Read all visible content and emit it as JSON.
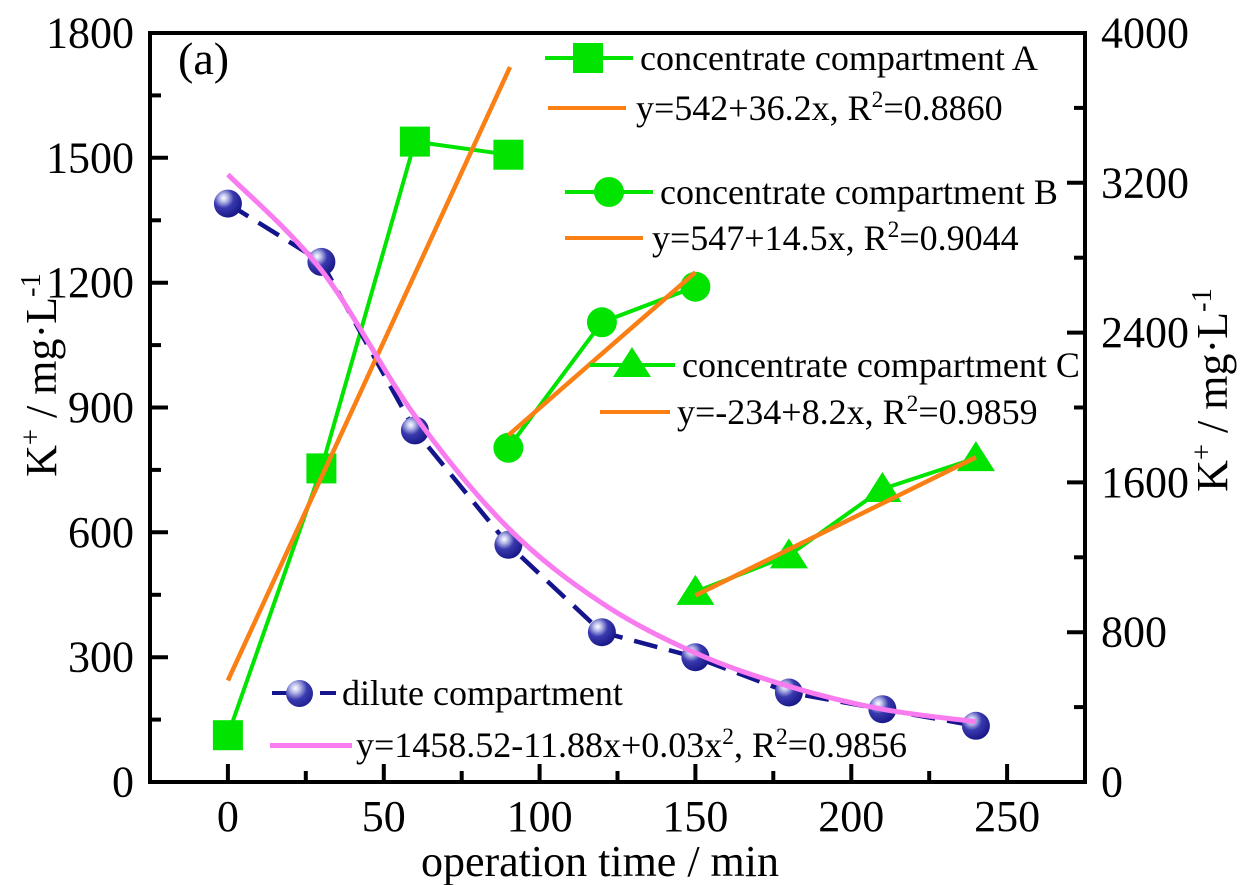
{
  "panel_label": "(a)",
  "colors": {
    "green": "#00e400",
    "orange": "#fa8016",
    "pink": "#f87cf0",
    "navy": "#14148c",
    "axis": "#000000",
    "background": "#ffffff"
  },
  "axes": {
    "x": {
      "title": "operation time / min",
      "range": [
        -25,
        275
      ],
      "major_ticks": [
        0,
        50,
        100,
        150,
        200,
        250
      ],
      "minor_ticks": [
        25,
        75,
        125,
        175,
        225
      ],
      "grid": false
    },
    "left": {
      "title": {
        "pre": "K",
        "sup": "+",
        "post": " / mg·L",
        "sup2": "-1"
      },
      "range": [
        0,
        1800
      ],
      "major_ticks": [
        0,
        300,
        600,
        900,
        1200,
        1500,
        1800
      ],
      "minor_ticks": [
        150,
        450,
        750,
        1050,
        1350,
        1650
      ],
      "grid": false
    },
    "right": {
      "title": {
        "pre": "K",
        "sup": "+",
        "post": " / mg·L",
        "sup2": "-1"
      },
      "range": [
        0,
        4000
      ],
      "major_ticks": [
        0,
        800,
        1600,
        2400,
        3200,
        4000
      ],
      "minor_ticks": [
        400,
        1200,
        2000,
        2800,
        3600
      ],
      "grid": false
    }
  },
  "chart_data": {
    "type": "scatter-line",
    "xlabel": "operation time / min",
    "ylabel_left": "K+ / mg·L-1",
    "ylabel_right": "K+ / mg·L-1",
    "series": [
      {
        "name": "concentrate compartment A",
        "axis": "right",
        "marker": "square",
        "line": "solid",
        "color_key": "green",
        "x": [
          0,
          30,
          60,
          90
        ],
        "y": [
          250,
          1675,
          3420,
          3350
        ]
      },
      {
        "name": "concentrate compartment B",
        "axis": "right",
        "marker": "circle",
        "line": "solid",
        "color_key": "green",
        "x": [
          90,
          120,
          150
        ],
        "y": [
          1785,
          2455,
          2645
        ]
      },
      {
        "name": "concentrate compartment C",
        "axis": "right",
        "marker": "triangle",
        "line": "solid",
        "color_key": "green",
        "x": [
          150,
          180,
          210,
          240
        ],
        "y": [
          1015,
          1210,
          1565,
          1730
        ]
      },
      {
        "name": "dilute compartment",
        "axis": "left",
        "marker": "ball",
        "line": "dashed",
        "color_key": "navy",
        "x": [
          0,
          30,
          60,
          90,
          120,
          150,
          180,
          210,
          240
        ],
        "y": [
          1390,
          1250,
          845,
          570,
          360,
          300,
          215,
          175,
          135
        ]
      }
    ],
    "fits": [
      {
        "label": "y=542+36.2x, R2=0.8860",
        "axis": "right",
        "type": "linear",
        "intercept": 542,
        "slope": 36.2,
        "x_range": [
          0,
          90.5
        ],
        "color_key": "orange"
      },
      {
        "label": "y=547+14.5x, R2=0.9044",
        "axis": "right",
        "type": "linear",
        "intercept": 547,
        "slope": 14.5,
        "x_range": [
          90,
          150
        ],
        "color_key": "orange"
      },
      {
        "label": "y=-234+8.2x, R2=0.9859",
        "axis": "right",
        "type": "linear",
        "intercept": -234,
        "slope": 8.2,
        "x_range": [
          150,
          240
        ],
        "color_key": "orange"
      },
      {
        "label": "y=1458.52-11.88x+0.03x2, R2=0.9856",
        "axis": "left",
        "type": "curve",
        "samples": [
          [
            0,
            1460
          ],
          [
            30,
            1230
          ],
          [
            60,
            880
          ],
          [
            90,
            610
          ],
          [
            120,
            430
          ],
          [
            150,
            310
          ],
          [
            180,
            230
          ],
          [
            210,
            175
          ],
          [
            240,
            145
          ]
        ],
        "color_key": "pink"
      }
    ]
  },
  "legend": {
    "seriesA": {
      "label": "concentrate compartment A"
    },
    "fitA": {
      "pre": "y=542+36.2x, R",
      "sup": "2",
      "post": "=0.8860"
    },
    "seriesB": {
      "label": "concentrate compartment B"
    },
    "fitB": {
      "pre": "y=547+14.5x, R",
      "sup": "2",
      "post": "=0.9044"
    },
    "seriesC": {
      "label": "concentrate compartment C"
    },
    "fitC": {
      "pre": "y=-234+8.2x, R",
      "sup": "2",
      "post": "=0.9859"
    },
    "seriesD": {
      "label": "dilute compartment"
    },
    "fitD": {
      "pre": "y=1458.52-11.88x+0.03x",
      "sup": "2",
      "post": ", R",
      "sup2": "2",
      "post2": "=0.9856"
    }
  }
}
